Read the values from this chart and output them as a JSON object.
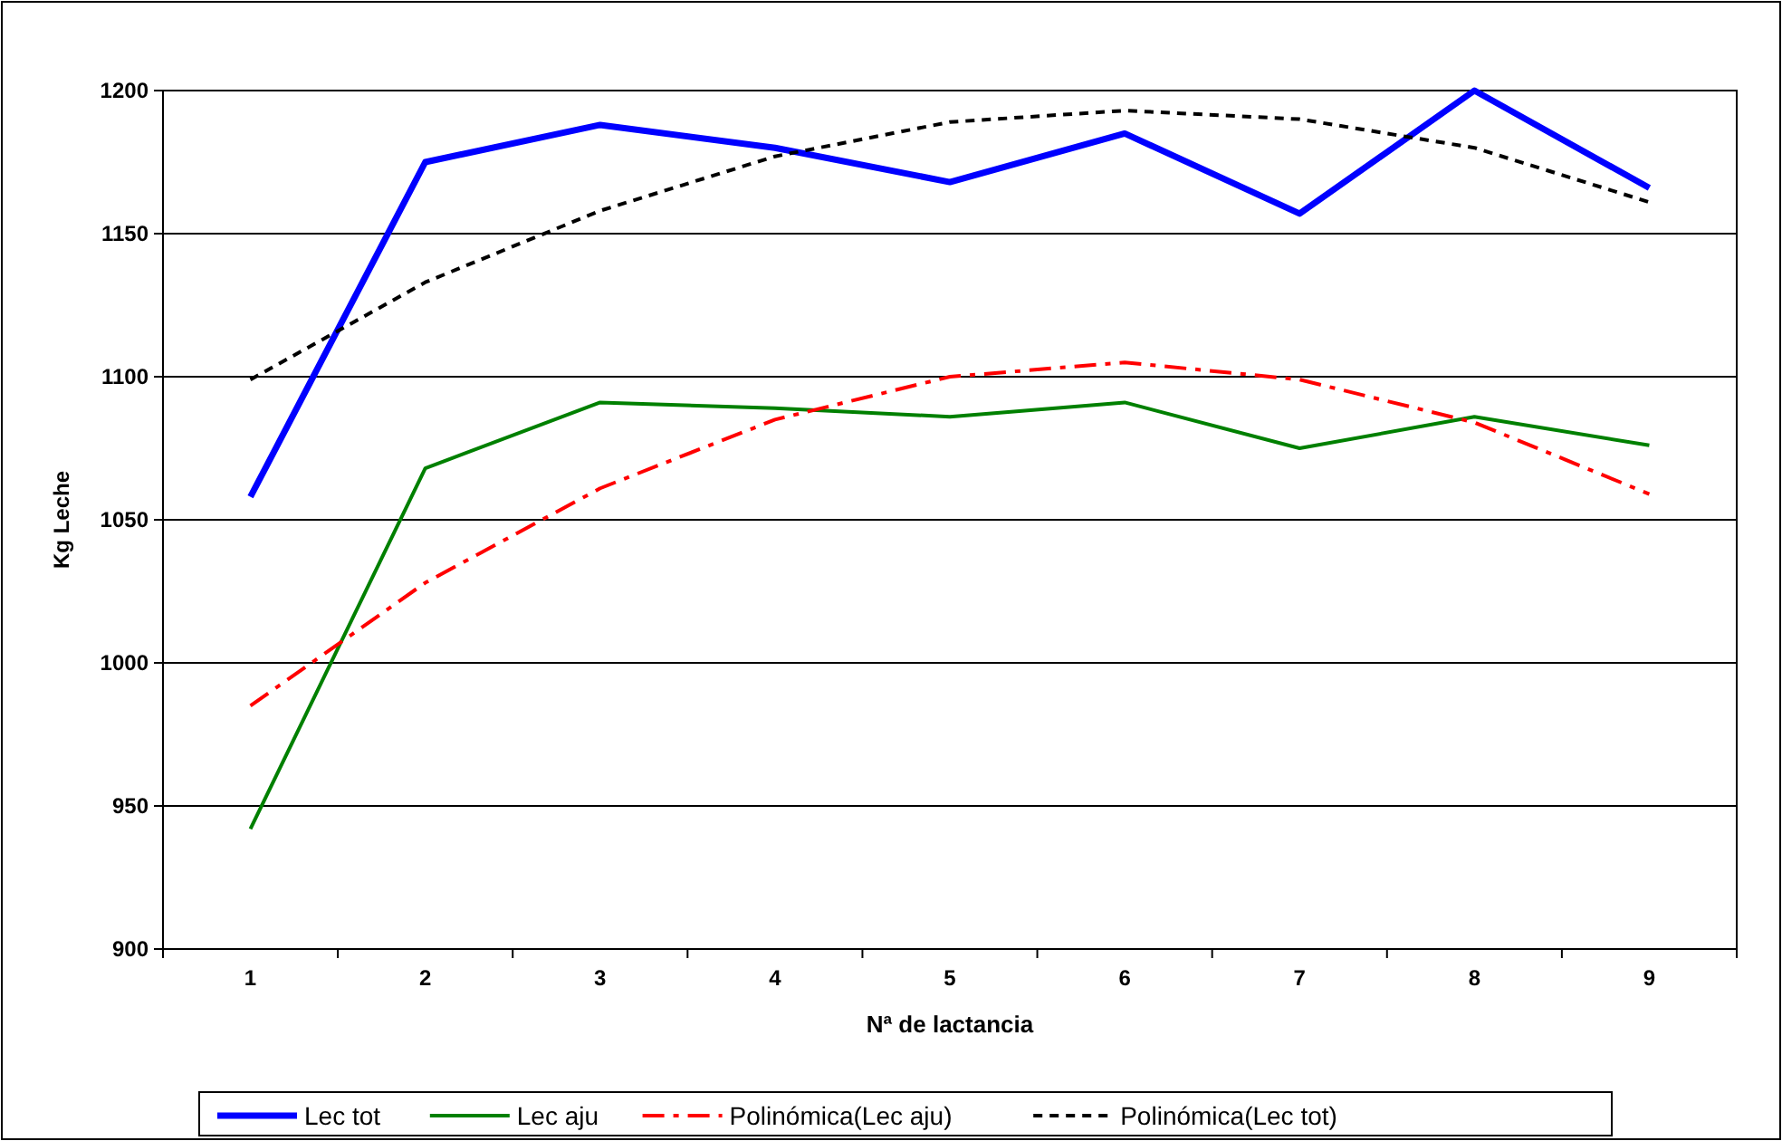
{
  "chart_data": {
    "type": "line",
    "xlabel": "Nª de lactancia",
    "ylabel": "Kg Leche",
    "categories": [
      "1",
      "2",
      "3",
      "4",
      "5",
      "6",
      "7",
      "8",
      "9"
    ],
    "series": [
      {
        "name": "Lec tot",
        "color": "#0000ff",
        "line_style": "solid",
        "values": [
          1058,
          1175,
          1188,
          1180,
          1168,
          1185,
          1157,
          1200,
          1166
        ]
      },
      {
        "name": "Lec aju",
        "color": "#008000",
        "line_style": "solid",
        "values": [
          942,
          1068,
          1091,
          1089,
          1086,
          1091,
          1075,
          1086,
          1076
        ]
      },
      {
        "name": "Polinómica(Lec aju)",
        "color": "#ff0000",
        "line_style": "dashed",
        "values": [
          985,
          1028,
          1061,
          1085,
          1100,
          1105,
          1099,
          1084,
          1059
        ]
      },
      {
        "name": "Polinómica(Lec tot)",
        "color": "#000000",
        "line_style": "dotted",
        "values": [
          1099,
          1133,
          1158,
          1177,
          1189,
          1193,
          1190,
          1180,
          1161
        ]
      }
    ],
    "ylim": [
      900,
      1200
    ],
    "yticks": [
      900,
      950,
      1000,
      1050,
      1100,
      1150,
      1200
    ],
    "grid": "y",
    "legend": "bottom"
  }
}
